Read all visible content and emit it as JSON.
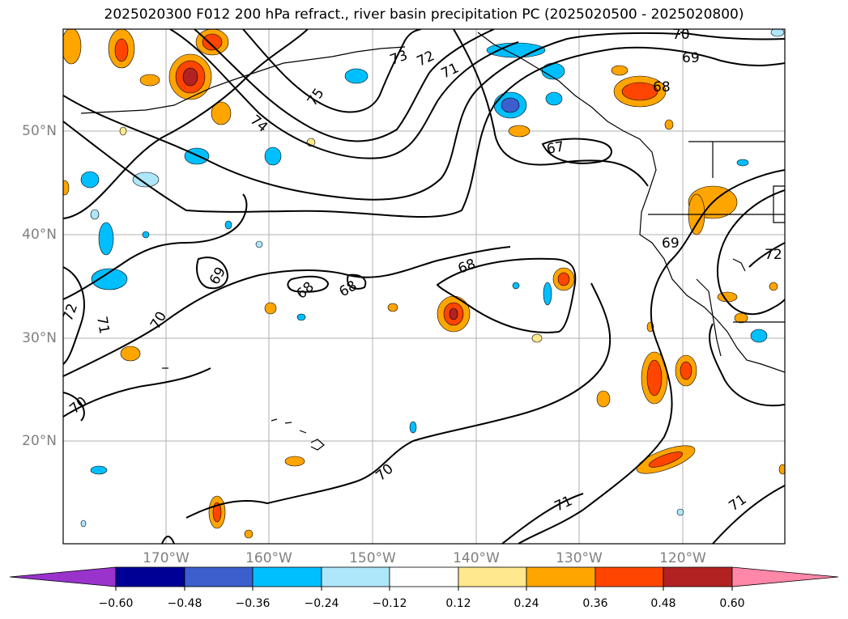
{
  "title": "2025020300 F012 200 hPa refract., river basin precipitation PC (2025020500 - 2025020800)",
  "map": {
    "lat_labels": [
      "50°N",
      "40°N",
      "30°N",
      "20°N"
    ],
    "lon_labels": [
      "170°W",
      "160°W",
      "150°W",
      "140°W",
      "130°W",
      "120°W"
    ],
    "contour_labels": [
      "70",
      "69",
      "68",
      "73",
      "72",
      "71",
      "75",
      "74",
      "67",
      "69",
      "72",
      "69",
      "68",
      "68",
      "68",
      "72",
      "71",
      "70",
      "70",
      "70",
      "71",
      "71"
    ]
  },
  "colorbar": {
    "ticks": [
      "−0.60",
      "−0.48",
      "−0.36",
      "−0.24",
      "−0.12",
      "0.12",
      "0.24",
      "0.36",
      "0.48",
      "0.60"
    ],
    "colors": {
      "under": "#9933cc",
      "bins": [
        "#000096",
        "#3c5fcd",
        "#00bfff",
        "#aee6fa",
        "#ffffff",
        "#ffe98c",
        "#ffa500",
        "#ff4500",
        "#b22222",
        "#ff87a8"
      ]
    }
  }
}
